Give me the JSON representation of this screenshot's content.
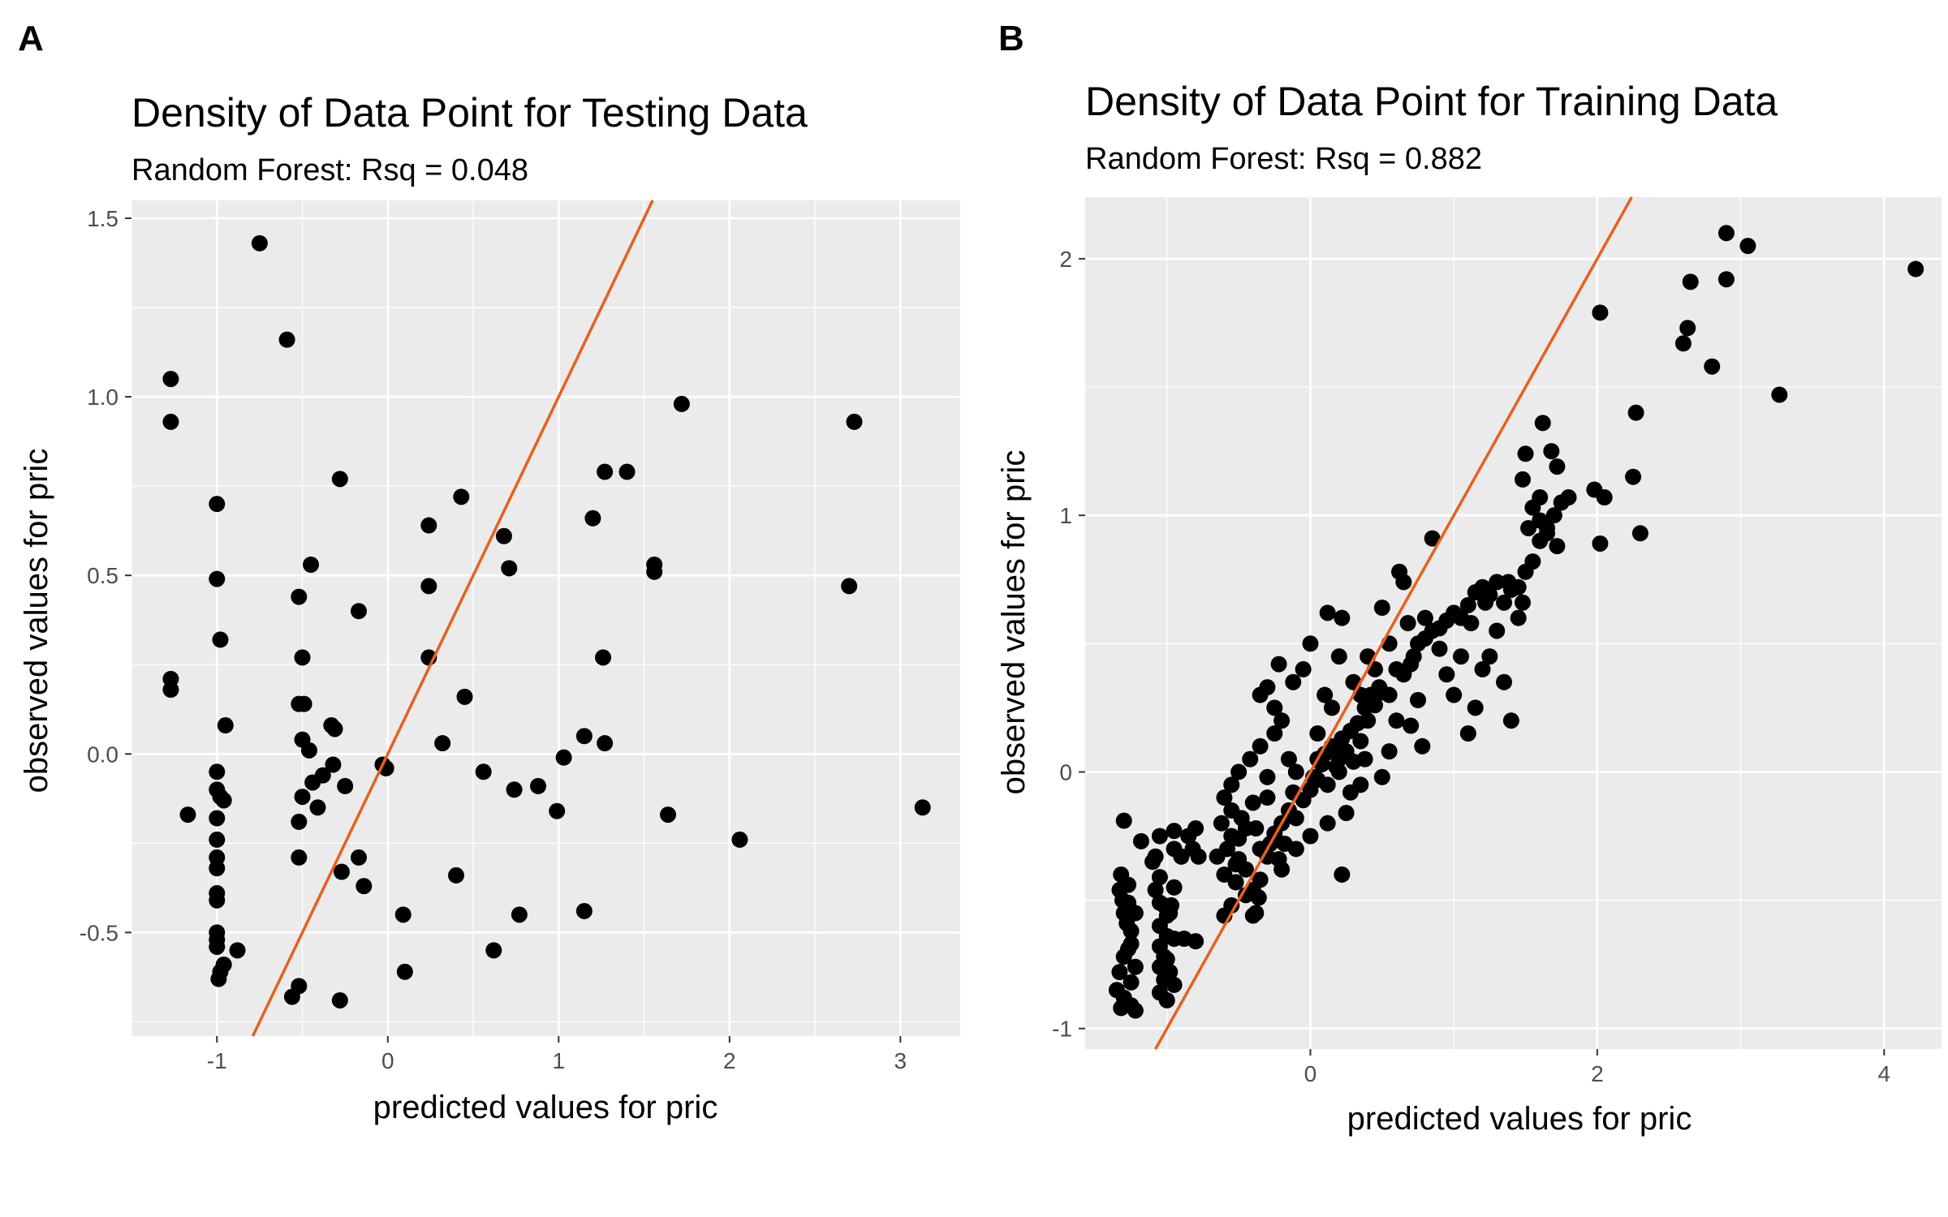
{
  "chart_data": [
    {
      "panel": "A",
      "type": "scatter",
      "title": "Density of Data Point for Testing Data",
      "subtitle": "Random Forest: Rsq = 0.048",
      "xlabel": "predicted values for pric",
      "ylabel": "observed values for pric",
      "xlim": [
        -1.5,
        3.35
      ],
      "ylim": [
        -0.79,
        1.55
      ],
      "xticks": [
        -1,
        0,
        1,
        2,
        3
      ],
      "xtick_labels": [
        "-1",
        "0",
        "1",
        "2",
        "3"
      ],
      "yticks": [
        -0.5,
        0.0,
        0.5,
        1.0,
        1.5
      ],
      "ytick_labels": [
        "-0.5",
        "0.0",
        "0.5",
        "1.0",
        "1.5"
      ],
      "grid": true,
      "reference_line": {
        "slope": 1,
        "intercept": 0,
        "color": "#e8601c"
      },
      "points": [
        [
          -0.75,
          1.43
        ],
        [
          -0.59,
          1.16
        ],
        [
          -1.27,
          1.05
        ],
        [
          -1.27,
          0.93
        ],
        [
          -1.27,
          0.21
        ],
        [
          -1.27,
          0.18
        ],
        [
          -1.17,
          -0.17
        ],
        [
          -1.0,
          0.7
        ],
        [
          -1.0,
          0.49
        ],
        [
          -0.98,
          0.32
        ],
        [
          -0.95,
          0.08
        ],
        [
          -1.0,
          -0.05
        ],
        [
          -1.0,
          -0.1
        ],
        [
          -0.98,
          -0.12
        ],
        [
          -0.96,
          -0.13
        ],
        [
          -1.0,
          -0.18
        ],
        [
          -1.0,
          -0.24
        ],
        [
          -1.0,
          -0.29
        ],
        [
          -1.0,
          -0.32
        ],
        [
          -1.0,
          -0.39
        ],
        [
          -1.0,
          -0.41
        ],
        [
          -1.0,
          -0.5
        ],
        [
          -1.0,
          -0.52
        ],
        [
          -1.0,
          -0.54
        ],
        [
          -0.96,
          -0.59
        ],
        [
          -0.98,
          -0.61
        ],
        [
          -0.99,
          -0.63
        ],
        [
          -0.88,
          -0.55
        ],
        [
          -0.56,
          -0.68
        ],
        [
          -0.52,
          -0.65
        ],
        [
          -0.28,
          -0.69
        ],
        [
          -0.28,
          0.77
        ],
        [
          -0.45,
          0.53
        ],
        [
          -0.52,
          0.44
        ],
        [
          -0.5,
          0.27
        ],
        [
          -0.17,
          0.4
        ],
        [
          -0.52,
          0.14
        ],
        [
          -0.49,
          0.14
        ],
        [
          -0.5,
          0.04
        ],
        [
          -0.46,
          0.01
        ],
        [
          -0.33,
          0.08
        ],
        [
          -0.31,
          0.07
        ],
        [
          -0.32,
          -0.03
        ],
        [
          -0.38,
          -0.06
        ],
        [
          -0.44,
          -0.08
        ],
        [
          -0.5,
          -0.12
        ],
        [
          -0.25,
          -0.09
        ],
        [
          -0.52,
          -0.19
        ],
        [
          -0.41,
          -0.15
        ],
        [
          -0.17,
          -0.29
        ],
        [
          -0.52,
          -0.29
        ],
        [
          -0.27,
          -0.33
        ],
        [
          -0.14,
          -0.37
        ],
        [
          -0.01,
          -0.04
        ],
        [
          -0.03,
          -0.03
        ],
        [
          0.24,
          0.64
        ],
        [
          0.24,
          0.47
        ],
        [
          0.24,
          0.27
        ],
        [
          0.45,
          0.16
        ],
        [
          0.43,
          0.72
        ],
        [
          0.32,
          0.03
        ],
        [
          0.4,
          -0.34
        ],
        [
          0.09,
          -0.45
        ],
        [
          0.1,
          -0.61
        ],
        [
          0.68,
          0.61
        ],
        [
          0.71,
          0.52
        ],
        [
          0.56,
          -0.05
        ],
        [
          0.62,
          -0.55
        ],
        [
          0.74,
          -0.1
        ],
        [
          0.77,
          -0.45
        ],
        [
          0.88,
          -0.09
        ],
        [
          0.99,
          -0.16
        ],
        [
          1.03,
          -0.01
        ],
        [
          1.15,
          -0.44
        ],
        [
          1.15,
          0.05
        ],
        [
          1.27,
          0.03
        ],
        [
          1.2,
          0.66
        ],
        [
          1.27,
          0.79
        ],
        [
          1.4,
          0.79
        ],
        [
          1.26,
          0.27
        ],
        [
          1.56,
          0.53
        ],
        [
          1.56,
          0.51
        ],
        [
          1.72,
          0.98
        ],
        [
          1.64,
          -0.17
        ],
        [
          2.06,
          -0.24
        ],
        [
          2.7,
          0.47
        ],
        [
          2.73,
          0.93
        ],
        [
          3.13,
          -0.15
        ]
      ]
    },
    {
      "panel": "B",
      "type": "scatter",
      "title": "Density of Data Point for Training Data",
      "subtitle": "Random Forest: Rsq = 0.882",
      "xlabel": "predicted values for pric",
      "ylabel": "observed values for pric",
      "xlim": [
        -1.57,
        4.4
      ],
      "ylim": [
        -1.08,
        2.24
      ],
      "xticks": [
        0,
        2,
        4
      ],
      "xtick_labels": [
        "0",
        "2",
        "4"
      ],
      "yticks": [
        -1,
        0,
        1,
        2
      ],
      "ytick_labels": [
        "-1",
        "0",
        "1",
        "2"
      ],
      "grid": true,
      "reference_line": {
        "slope": 1,
        "intercept": 0,
        "color": "#e8601c"
      },
      "points": [
        [
          -1.3,
          -0.19
        ],
        [
          -1.32,
          -0.4
        ],
        [
          -1.33,
          -0.46
        ],
        [
          -1.31,
          -0.5
        ],
        [
          -1.3,
          -0.55
        ],
        [
          -1.28,
          -0.59
        ],
        [
          -1.25,
          -0.62
        ],
        [
          -1.27,
          -0.69
        ],
        [
          -1.3,
          -0.72
        ],
        [
          -1.33,
          -0.78
        ],
        [
          -1.35,
          -0.85
        ],
        [
          -1.3,
          -0.88
        ],
        [
          -1.25,
          -0.91
        ],
        [
          -1.22,
          -0.93
        ],
        [
          -1.32,
          -0.92
        ],
        [
          -1.25,
          -0.82
        ],
        [
          -1.22,
          -0.76
        ],
        [
          -1.25,
          -0.67
        ],
        [
          -1.22,
          -0.55
        ],
        [
          -1.27,
          -0.51
        ],
        [
          -1.27,
          -0.44
        ],
        [
          -1.18,
          -0.27
        ],
        [
          -1.1,
          -0.35
        ],
        [
          -1.05,
          -0.25
        ],
        [
          -1.08,
          -0.33
        ],
        [
          -1.05,
          -0.41
        ],
        [
          -1.08,
          -0.46
        ],
        [
          -1.05,
          -0.51
        ],
        [
          -1.02,
          -0.52
        ],
        [
          -1.0,
          -0.56
        ],
        [
          -1.05,
          -0.6
        ],
        [
          -1.0,
          -0.64
        ],
        [
          -1.05,
          -0.68
        ],
        [
          -1.02,
          -0.72
        ],
        [
          -1.05,
          -0.76
        ],
        [
          -1.02,
          -0.81
        ],
        [
          -1.05,
          -0.86
        ],
        [
          -1.0,
          -0.89
        ],
        [
          -0.97,
          -0.52
        ],
        [
          -0.95,
          -0.45
        ],
        [
          -0.98,
          -0.55
        ],
        [
          -0.95,
          -0.65
        ],
        [
          -0.88,
          -0.65
        ],
        [
          -0.8,
          -0.66
        ],
        [
          -0.95,
          -0.3
        ],
        [
          -0.9,
          -0.33
        ],
        [
          -0.95,
          -0.23
        ],
        [
          -0.85,
          -0.25
        ],
        [
          -0.82,
          -0.3
        ],
        [
          -0.78,
          -0.33
        ],
        [
          -0.8,
          -0.22
        ],
        [
          -0.98,
          -0.78
        ],
        [
          -0.95,
          -0.83
        ],
        [
          -1.0,
          -0.73
        ],
        [
          -0.6,
          -0.56
        ],
        [
          -0.55,
          -0.52
        ],
        [
          -0.52,
          -0.43
        ],
        [
          -0.5,
          -0.34
        ],
        [
          -0.5,
          -0.26
        ],
        [
          -0.45,
          -0.38
        ],
        [
          -0.4,
          -0.46
        ],
        [
          -0.38,
          -0.55
        ],
        [
          -0.36,
          -0.49
        ],
        [
          -0.35,
          -0.42
        ],
        [
          -0.3,
          -0.33
        ],
        [
          -0.28,
          -0.28
        ],
        [
          -0.25,
          -0.24
        ],
        [
          -0.22,
          -0.34
        ],
        [
          -0.2,
          -0.2
        ],
        [
          -0.18,
          -0.28
        ],
        [
          -0.15,
          -0.15
        ],
        [
          -0.12,
          -0.08
        ],
        [
          -0.1,
          -0.18
        ],
        [
          -0.05,
          -0.11
        ],
        [
          0.0,
          -0.07
        ],
        [
          0.02,
          -0.02
        ],
        [
          0.05,
          -0.03
        ],
        [
          0.08,
          0.03
        ],
        [
          0.1,
          0.07
        ],
        [
          0.12,
          -0.05
        ],
        [
          0.15,
          0.1
        ],
        [
          0.18,
          0.02
        ],
        [
          0.2,
          0.05
        ],
        [
          0.22,
          0.13
        ],
        [
          0.25,
          0.08
        ],
        [
          0.28,
          0.16
        ],
        [
          0.3,
          0.04
        ],
        [
          0.33,
          0.19
        ],
        [
          0.35,
          0.12
        ],
        [
          0.38,
          0.25
        ],
        [
          0.4,
          0.2
        ],
        [
          0.42,
          0.3
        ],
        [
          0.45,
          0.26
        ],
        [
          0.48,
          0.33
        ],
        [
          0.5,
          0.31
        ],
        [
          0.55,
          0.3
        ],
        [
          0.6,
          0.4
        ],
        [
          0.65,
          0.38
        ],
        [
          0.7,
          0.42
        ],
        [
          0.72,
          0.45
        ],
        [
          0.75,
          0.5
        ],
        [
          0.8,
          0.52
        ],
        [
          0.85,
          0.55
        ],
        [
          0.9,
          0.56
        ],
        [
          0.95,
          0.59
        ],
        [
          1.0,
          0.62
        ],
        [
          1.05,
          0.6
        ],
        [
          1.1,
          0.65
        ],
        [
          1.15,
          0.7
        ],
        [
          1.2,
          0.72
        ],
        [
          1.25,
          0.69
        ],
        [
          1.3,
          0.74
        ],
        [
          1.35,
          0.66
        ],
        [
          1.4,
          0.71
        ],
        [
          1.45,
          0.72
        ],
        [
          1.5,
          0.78
        ],
        [
          1.55,
          0.82
        ],
        [
          1.6,
          0.9
        ],
        [
          1.65,
          0.95
        ],
        [
          1.7,
          1.0
        ],
        [
          1.52,
          0.95
        ],
        [
          1.55,
          1.03
        ],
        [
          1.6,
          1.07
        ],
        [
          1.48,
          1.14
        ],
        [
          1.5,
          1.24
        ],
        [
          1.62,
          1.36
        ],
        [
          1.68,
          1.25
        ],
        [
          1.72,
          1.19
        ],
        [
          1.8,
          1.07
        ],
        [
          1.75,
          1.05
        ],
        [
          1.72,
          0.88
        ],
        [
          1.65,
          0.93
        ],
        [
          1.6,
          0.98
        ],
        [
          1.98,
          1.1
        ],
        [
          2.05,
          1.07
        ],
        [
          2.02,
          0.89
        ],
        [
          2.25,
          1.15
        ],
        [
          2.3,
          0.93
        ],
        [
          2.27,
          1.4
        ],
        [
          2.02,
          1.79
        ],
        [
          2.6,
          1.67
        ],
        [
          2.63,
          1.73
        ],
        [
          2.65,
          1.91
        ],
        [
          2.8,
          1.58
        ],
        [
          2.9,
          1.92
        ],
        [
          2.9,
          2.1
        ],
        [
          3.05,
          2.05
        ],
        [
          3.27,
          1.47
        ],
        [
          4.22,
          1.96
        ],
        [
          1.4,
          0.2
        ],
        [
          1.15,
          0.25
        ],
        [
          1.1,
          0.15
        ],
        [
          1.25,
          0.45
        ],
        [
          1.35,
          0.35
        ],
        [
          1.45,
          0.6
        ],
        [
          1.2,
          0.4
        ],
        [
          0.95,
          0.38
        ],
        [
          0.75,
          0.28
        ],
        [
          0.7,
          0.18
        ],
        [
          0.55,
          0.08
        ],
        [
          0.5,
          -0.02
        ],
        [
          0.38,
          0.05
        ],
        [
          0.28,
          -0.08
        ],
        [
          0.25,
          -0.16
        ],
        [
          0.12,
          -0.2
        ],
        [
          0.0,
          -0.25
        ],
        [
          -0.1,
          -0.3
        ],
        [
          0.22,
          -0.4
        ],
        [
          0.2,
          0.45
        ],
        [
          0.12,
          0.62
        ],
        [
          0.22,
          0.6
        ],
        [
          0.0,
          0.5
        ],
        [
          -0.05,
          0.4
        ],
        [
          -0.12,
          0.35
        ],
        [
          -0.22,
          0.42
        ],
        [
          -0.3,
          0.33
        ],
        [
          -0.35,
          0.3
        ],
        [
          -0.25,
          0.25
        ],
        [
          -0.2,
          0.2
        ],
        [
          -0.25,
          0.15
        ],
        [
          -0.35,
          0.1
        ],
        [
          -0.42,
          0.05
        ],
        [
          -0.5,
          0.0
        ],
        [
          -0.55,
          -0.05
        ],
        [
          -0.6,
          -0.1
        ],
        [
          -0.55,
          -0.15
        ],
        [
          -0.62,
          -0.2
        ],
        [
          -0.58,
          -0.3
        ],
        [
          -0.52,
          -0.36
        ],
        [
          -0.45,
          -0.48
        ],
        [
          -0.4,
          -0.56
        ],
        [
          -0.6,
          -0.4
        ],
        [
          -0.65,
          -0.33
        ],
        [
          0.62,
          0.78
        ],
        [
          0.65,
          0.74
        ],
        [
          0.85,
          0.91
        ],
        [
          0.5,
          0.64
        ],
        [
          0.55,
          0.5
        ],
        [
          0.8,
          0.6
        ],
        [
          1.0,
          0.3
        ],
        [
          1.05,
          0.45
        ],
        [
          1.3,
          0.55
        ],
        [
          0.3,
          0.35
        ],
        [
          0.4,
          0.45
        ],
        [
          0.6,
          0.2
        ],
        [
          0.78,
          0.1
        ],
        [
          0.1,
          0.3
        ],
        [
          0.05,
          0.15
        ],
        [
          -0.15,
          0.05
        ],
        [
          -0.3,
          -0.02
        ],
        [
          -0.4,
          -0.12
        ],
        [
          -0.45,
          -0.22
        ],
        [
          -0.35,
          -0.3
        ],
        [
          -0.2,
          -0.38
        ],
        [
          0.15,
          0.25
        ],
        [
          0.35,
          0.3
        ],
        [
          0.45,
          0.4
        ],
        [
          0.68,
          0.58
        ],
        [
          0.9,
          0.48
        ],
        [
          1.12,
          0.58
        ],
        [
          1.22,
          0.66
        ],
        [
          1.38,
          0.74
        ],
        [
          1.48,
          0.66
        ],
        [
          -0.48,
          -0.18
        ],
        [
          -0.3,
          -0.1
        ],
        [
          -0.1,
          0.0
        ],
        [
          0.05,
          0.05
        ],
        [
          0.2,
          0.0
        ],
        [
          0.35,
          -0.05
        ],
        [
          -0.55,
          -0.25
        ],
        [
          -0.38,
          -0.22
        ]
      ]
    }
  ]
}
